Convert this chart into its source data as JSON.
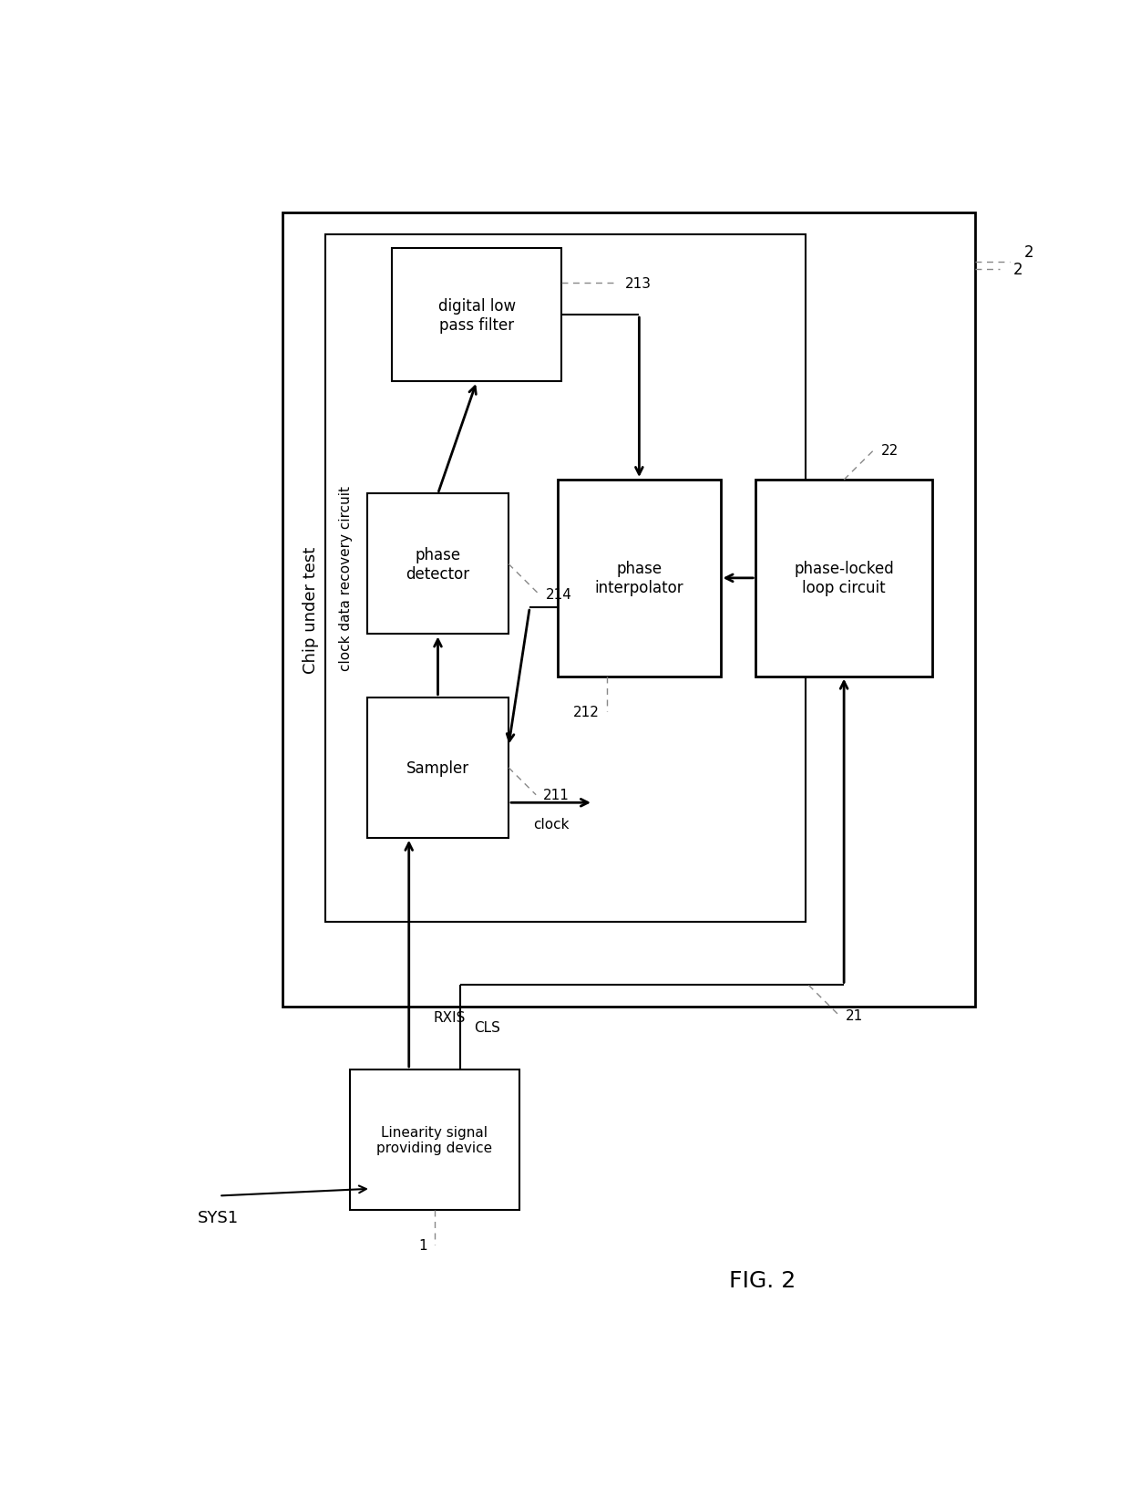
{
  "fig_width": 12.4,
  "fig_height": 16.33,
  "bg_color": "#ffffff",
  "box_color": "#ffffff",
  "box_edge_color": "#000000",
  "line_color": "#000000",
  "text_color": "#000000",
  "fig_label": "FIG. 2",
  "sys_label": "SYS1",
  "outer_box_label": "Chip under test",
  "outer_box_label2": "2",
  "inner_box_label": "clock data recovery circuit",
  "blocks": {
    "linearity_device": {
      "label": "Linearity signal\nproviding device",
      "id": "1"
    },
    "sampler": {
      "label": "Sampler",
      "id": "211"
    },
    "phase_detector": {
      "label": "phase\ndetector",
      "id": "214"
    },
    "digital_lpf": {
      "label": "digital low\npass filter",
      "id": "213"
    },
    "phase_interpolator": {
      "label": "phase\ninterpolator",
      "id": "212"
    },
    "pll": {
      "label": "phase-locked\nloop circuit",
      "id": "22"
    }
  },
  "signals": {
    "rxis": "RXIS",
    "cls": "CLS",
    "clock": "clock",
    "pll_id": "21"
  }
}
